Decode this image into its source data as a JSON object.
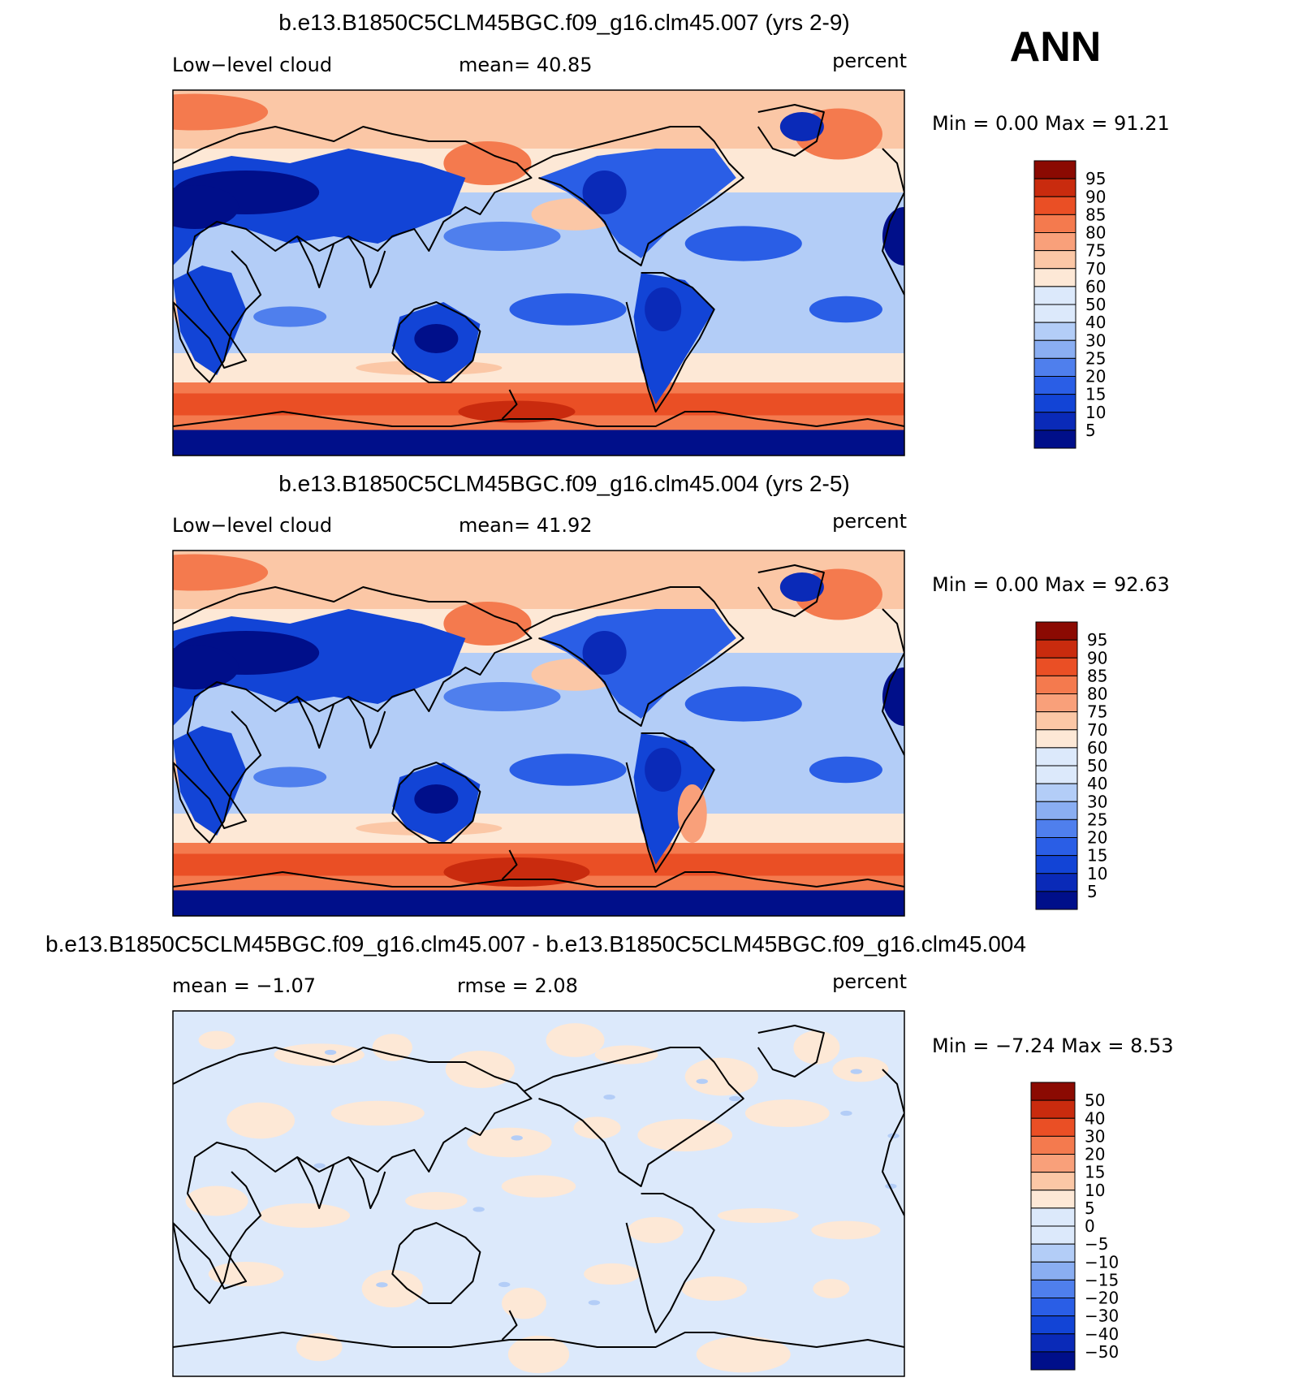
{
  "season": "ANN",
  "colors": {
    "levels13": [
      "#000f8a",
      "#0a2ab8",
      "#1244d6",
      "#2a5ee6",
      "#4f7fed",
      "#8aaef2",
      "#b3cdf7",
      "#dce9fb",
      "#fde8d6",
      "#fbc7a6",
      "#f9a07a",
      "#f47a4e",
      "#ea4f25",
      "#c92b0e",
      "#8b0a02"
    ],
    "land": "#e7f0fb"
  },
  "panels": [
    {
      "title": "b.e13.B1850C5CLM45BGC.f09_g16.clm45.007 (yrs 2-9)",
      "left_label": "Low−level cloud",
      "center_label": "mean=   40.85",
      "right_label": "percent",
      "minmax": "Min =     0.00 Max =    91.21",
      "colorbar": [
        "95",
        "90",
        "85",
        "80",
        "75",
        "70",
        "60",
        "50",
        "40",
        "30",
        "25",
        "20",
        "15",
        "10",
        "5"
      ],
      "variant": "A"
    },
    {
      "title": "b.e13.B1850C5CLM45BGC.f09_g16.clm45.004 (yrs 2-5)",
      "left_label": "Low−level cloud",
      "center_label": "mean=   41.92",
      "right_label": "percent",
      "minmax": "Min =     0.00 Max =    92.63",
      "colorbar": [
        "95",
        "90",
        "85",
        "80",
        "75",
        "70",
        "60",
        "50",
        "40",
        "30",
        "25",
        "20",
        "15",
        "10",
        "5"
      ],
      "variant": "B"
    },
    {
      "title": "b.e13.B1850C5CLM45BGC.f09_g16.clm45.007 - b.e13.B1850C5CLM45BGC.f09_g16.clm45.004",
      "left_label": "mean =   −1.07",
      "center_label": "rmse =    2.08",
      "right_label": "percent",
      "minmax": "Min =   −7.24 Max =    8.53",
      "colorbar": [
        "50",
        "40",
        "30",
        "20",
        "15",
        "10",
        "5",
        "0",
        "−5",
        "−10",
        "−15",
        "−20",
        "−30",
        "−40",
        "−50"
      ],
      "variant": "D"
    }
  ]
}
